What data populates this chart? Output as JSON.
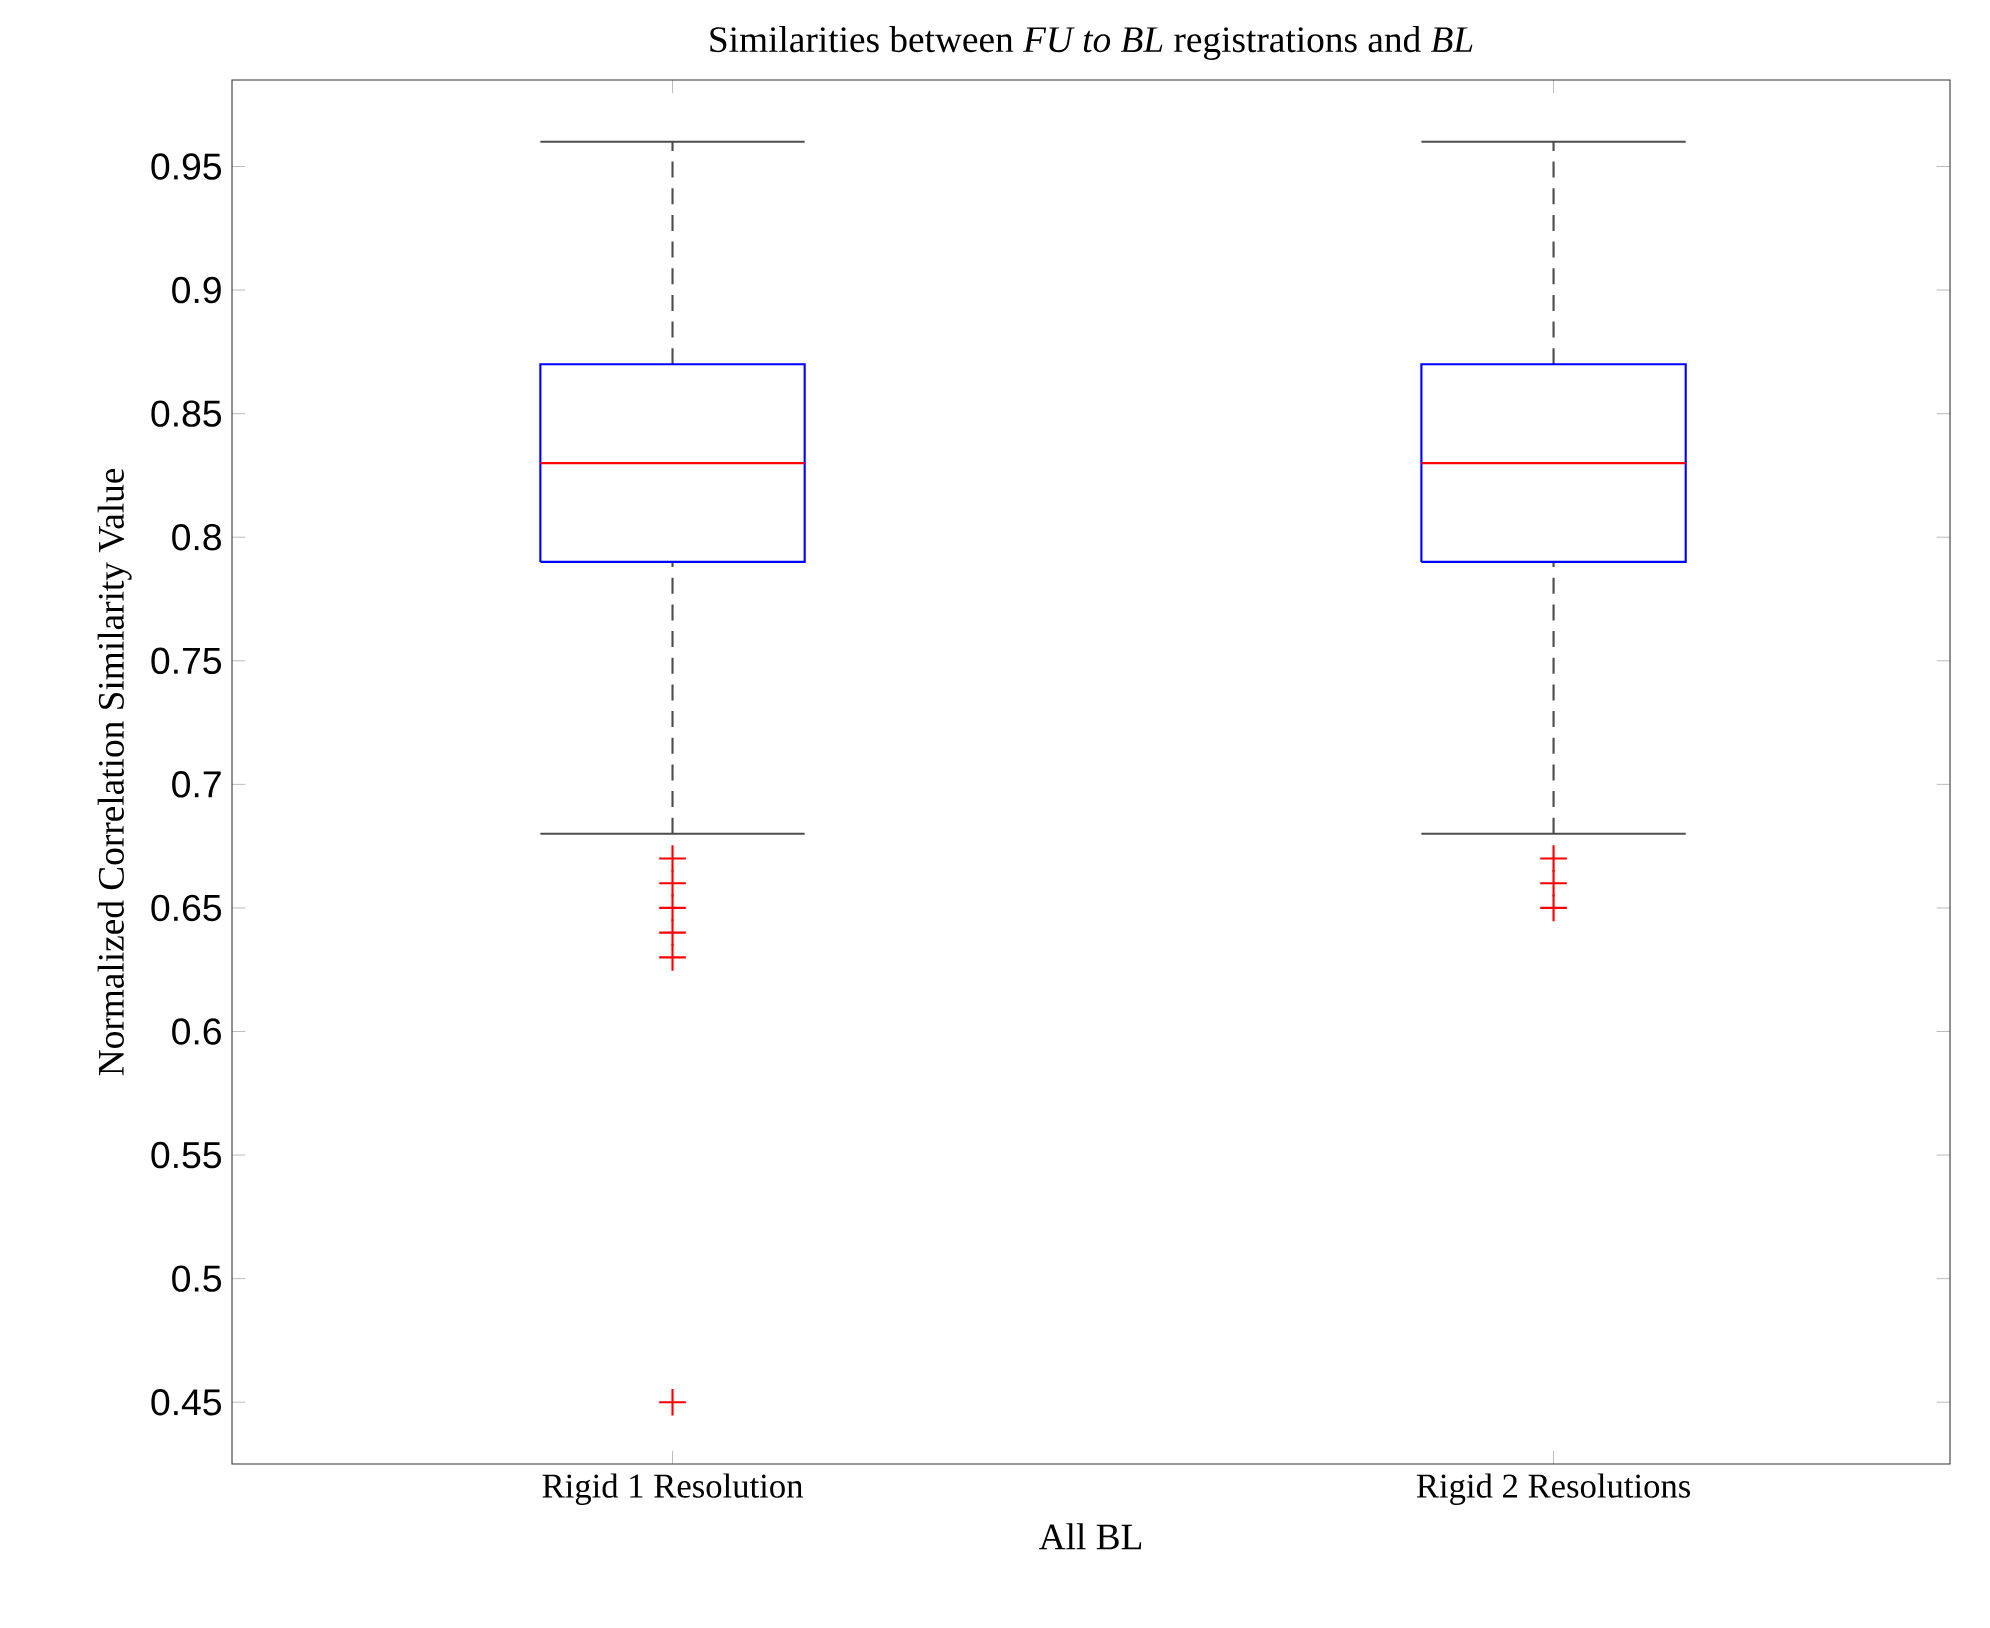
{
  "chart_data": {
    "type": "box",
    "title": "Similarities between *FU to BL* registrations and *BL*",
    "xlabel": "All BL",
    "ylabel": "Normalized Correlation Similarity Value",
    "categories": [
      "Rigid 1 Resolution",
      "Rigid 2 Resolutions"
    ],
    "series": [
      {
        "color": "#0000ff",
        "boxes": [
          {
            "low": 0.68,
            "q1": 0.79,
            "median": 0.83,
            "q3": 0.87,
            "high": 0.96,
            "outliers": [
              0.67,
              0.66,
              0.65,
              0.64,
              0.63,
              0.45
            ]
          },
          {
            "low": 0.68,
            "q1": 0.79,
            "median": 0.83,
            "q3": 0.87,
            "high": 0.96,
            "outliers": [
              0.67,
              0.66,
              0.65
            ]
          }
        ]
      }
    ],
    "ylim": [
      0.425,
      0.985
    ],
    "yticks": [
      0.45,
      0.5,
      0.55,
      0.6,
      0.65,
      0.7,
      0.75,
      0.8,
      0.85,
      0.9,
      0.95
    ],
    "marker": "cross",
    "grid": false
  }
}
